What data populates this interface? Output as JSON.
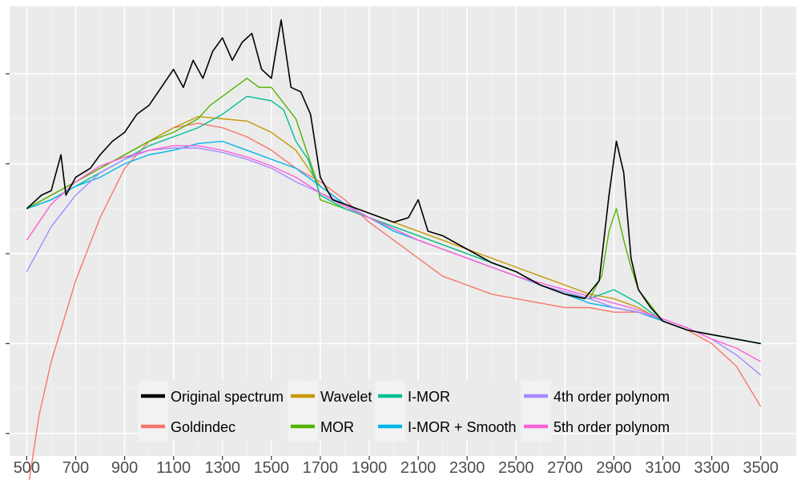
{
  "chart_data": {
    "type": "line",
    "title": "",
    "xlabel": "",
    "ylabel": "",
    "xlim": [
      430,
      3645
    ],
    "ylim": [
      0,
      100
    ],
    "x_ticks": [
      500,
      700,
      900,
      1100,
      1300,
      1500,
      1700,
      1900,
      2100,
      2300,
      2500,
      2700,
      2900,
      3100,
      3300,
      3500
    ],
    "y_ticks": [
      5,
      25,
      45,
      65,
      85
    ],
    "y_tick_labels_visible": false,
    "background": "#ebebeb",
    "grid": true,
    "legend_position": "bottom (inside plot)",
    "series": [
      {
        "name": "Original spectrum",
        "color": "#000000",
        "x": [
          500,
          560,
          600,
          640,
          660,
          700,
          760,
          800,
          850,
          900,
          950,
          1000,
          1050,
          1100,
          1140,
          1180,
          1220,
          1260,
          1300,
          1340,
          1380,
          1420,
          1460,
          1500,
          1540,
          1580,
          1620,
          1660,
          1700,
          1750,
          1800,
          1900,
          2000,
          2060,
          2100,
          2140,
          2200,
          2300,
          2400,
          2500,
          2600,
          2700,
          2780,
          2840,
          2880,
          2910,
          2940,
          2970,
          3000,
          3050,
          3100,
          3150,
          3200,
          3300,
          3400,
          3500
        ],
        "y": [
          55,
          58,
          59,
          67,
          58,
          62,
          64,
          67,
          70,
          72,
          76,
          78,
          82,
          86,
          82,
          88,
          84,
          90,
          93,
          88,
          92,
          94,
          86,
          84,
          97,
          82,
          81,
          76,
          62,
          57,
          56,
          54,
          52,
          53,
          57,
          50,
          49,
          46,
          43,
          41,
          38,
          36,
          35,
          39,
          58,
          70,
          63,
          44,
          37,
          33,
          30,
          29,
          28,
          27,
          26,
          25
        ]
      },
      {
        "name": "Goldindec",
        "color": "#f8766d",
        "x": [
          500,
          550,
          600,
          700,
          800,
          900,
          1000,
          1100,
          1200,
          1300,
          1400,
          1500,
          1600,
          1700,
          1800,
          1900,
          2000,
          2100,
          2200,
          2300,
          2400,
          2500,
          2600,
          2700,
          2800,
          2900,
          3000,
          3100,
          3200,
          3300,
          3400,
          3500
        ],
        "y": [
          -9,
          9,
          21,
          39,
          53,
          64,
          70,
          73,
          74,
          73,
          71,
          68,
          64,
          61,
          57,
          52,
          48,
          44,
          40,
          38,
          36,
          35,
          34,
          33,
          33,
          32,
          32,
          30,
          28,
          25,
          20,
          11
        ]
      },
      {
        "name": "Wavelet",
        "color": "#c49a00",
        "x": [
          500,
          600,
          700,
          800,
          900,
          1000,
          1100,
          1200,
          1300,
          1400,
          1500,
          1600,
          1700,
          1800,
          1900,
          2000,
          2100,
          2200,
          2300,
          2400,
          2500,
          2600,
          2700,
          2800,
          2900,
          3000,
          3100,
          3200,
          3300,
          3400,
          3500
        ],
        "y": [
          55,
          58,
          61,
          64,
          67,
          70,
          73,
          75.5,
          75,
          74.5,
          72,
          68,
          60,
          56,
          54,
          52,
          50,
          48,
          46,
          44,
          42,
          40,
          38,
          36,
          35,
          33,
          30,
          28,
          27,
          26,
          25
        ]
      },
      {
        "name": "MOR",
        "color": "#53b400",
        "x": [
          500,
          600,
          700,
          800,
          900,
          1000,
          1100,
          1200,
          1250,
          1300,
          1350,
          1400,
          1450,
          1500,
          1600,
          1680,
          1700,
          1800,
          1900,
          2000,
          2100,
          2200,
          2300,
          2400,
          2500,
          2600,
          2700,
          2800,
          2850,
          2880,
          2910,
          2940,
          2970,
          3000,
          3100,
          3200,
          3300,
          3400,
          3500
        ],
        "y": [
          55,
          58,
          61,
          64,
          67,
          70,
          72,
          75,
          78,
          80,
          82,
          84,
          82,
          82,
          75,
          62,
          57,
          55,
          53,
          51,
          49,
          47,
          45,
          43,
          41,
          38,
          36,
          35,
          40,
          50,
          55,
          48,
          42,
          37,
          30,
          28,
          27,
          26,
          25
        ]
      },
      {
        "name": "I-MOR",
        "color": "#00c094",
        "x": [
          500,
          600,
          700,
          800,
          900,
          1000,
          1100,
          1200,
          1300,
          1400,
          1500,
          1550,
          1600,
          1650,
          1700,
          1800,
          1900,
          2000,
          2100,
          2200,
          2300,
          2400,
          2500,
          2600,
          2700,
          2800,
          2900,
          3000,
          3100,
          3200,
          3300,
          3400,
          3500
        ],
        "y": [
          55,
          57,
          60,
          63,
          66,
          69,
          71,
          73,
          76,
          80,
          79,
          77,
          70,
          66,
          58,
          55,
          53,
          51,
          49,
          47,
          45,
          43,
          41,
          38,
          36,
          35,
          37,
          34,
          30,
          28,
          27,
          26,
          25
        ]
      },
      {
        "name": "I-MOR + Smooth",
        "color": "#00b6eb",
        "x": [
          500,
          600,
          700,
          800,
          900,
          1000,
          1100,
          1200,
          1300,
          1400,
          1500,
          1600,
          1700,
          1800,
          1900,
          2000,
          2100,
          2200,
          2300,
          2400,
          2500,
          2600,
          2700,
          2800,
          2900,
          3000,
          3100,
          3200,
          3300,
          3400,
          3500
        ],
        "y": [
          55,
          57,
          60,
          62,
          65,
          67,
          68,
          69.5,
          70,
          68,
          66,
          64,
          60,
          56,
          53,
          50,
          48,
          46,
          44,
          42,
          40,
          38,
          36,
          34,
          33,
          32,
          30,
          28,
          27,
          26,
          25
        ]
      },
      {
        "name": "4th order polynom",
        "color": "#a58aff",
        "x": [
          500,
          600,
          700,
          800,
          900,
          1000,
          1100,
          1200,
          1300,
          1400,
          1500,
          1600,
          1700,
          1800,
          1900,
          2000,
          2100,
          2200,
          2300,
          2400,
          2500,
          2600,
          2700,
          2800,
          2900,
          3000,
          3100,
          3200,
          3300,
          3400,
          3500
        ],
        "y": [
          41,
          51,
          58,
          63,
          66,
          68,
          68.5,
          68.5,
          67.5,
          66,
          64,
          61,
          58.5,
          56,
          53,
          50.5,
          48,
          46,
          44,
          42,
          40,
          38,
          36.5,
          35,
          33,
          32,
          30.5,
          28.5,
          26,
          22.5,
          18
        ]
      },
      {
        "name": "5th order polynom",
        "color": "#fb61d7",
        "x": [
          500,
          600,
          700,
          800,
          900,
          1000,
          1100,
          1200,
          1300,
          1400,
          1500,
          1600,
          1700,
          1800,
          1900,
          2000,
          2100,
          2200,
          2300,
          2400,
          2500,
          2600,
          2700,
          2800,
          2900,
          3000,
          3100,
          3200,
          3300,
          3400,
          3500
        ],
        "y": [
          48,
          56,
          61,
          64.5,
          66.5,
          68,
          69,
          69,
          68,
          66.5,
          64.5,
          62,
          58.5,
          55.5,
          53,
          50.5,
          48,
          46,
          44,
          42,
          40,
          38.5,
          37,
          35.5,
          34,
          32.5,
          30.5,
          28.5,
          26,
          24,
          21
        ]
      }
    ]
  },
  "legend": {
    "rows": [
      [
        "Original spectrum",
        "Wavelet",
        "I-MOR",
        "4th order polynom"
      ],
      [
        "Goldindec",
        "MOR",
        "I-MOR + Smooth",
        "5th order polynom"
      ]
    ]
  }
}
